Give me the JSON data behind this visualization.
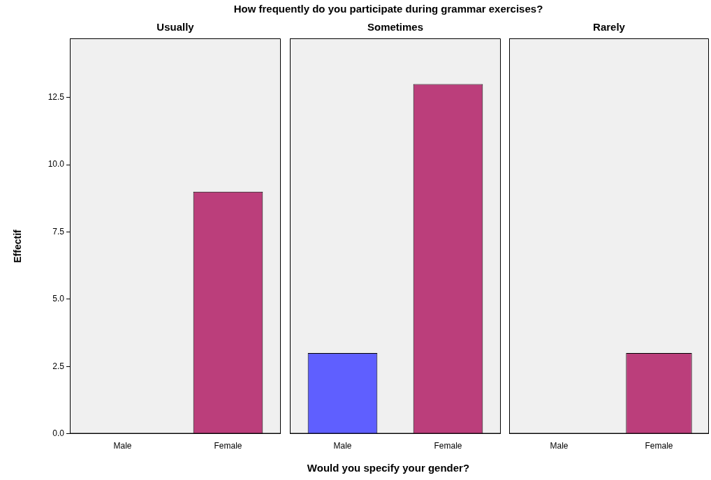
{
  "chart_data": [
    {
      "type": "bar",
      "title": "How frequently do you participate during grammar exercises?",
      "subtitle": "Usually",
      "ylabel": "Effectif",
      "categories": [
        "Male",
        "Female"
      ],
      "values": [
        0,
        9
      ],
      "colors": [
        "#5f5fff",
        "#bb3e7b"
      ],
      "ylim": [
        0,
        14.7
      ],
      "yticks": [
        {
          "value": 0,
          "label": "0.0"
        },
        {
          "value": 2.5,
          "label": "2.5"
        },
        {
          "value": 5,
          "label": "5.0"
        },
        {
          "value": 7.5,
          "label": "7.5"
        },
        {
          "value": 10,
          "label": "10.0"
        },
        {
          "value": 12.5,
          "label": "12.5"
        }
      ]
    },
    {
      "type": "bar",
      "subtitle": "Sometimes",
      "xlabel": "Would you specify your gender?",
      "categories": [
        "Male",
        "Female"
      ],
      "values": [
        3,
        13
      ],
      "colors": [
        "#5f5fff",
        "#bb3e7b"
      ],
      "ylim": [
        0,
        14.7
      ],
      "tick_labels": "x"
    },
    {
      "type": "bar",
      "subtitle": "Rarely",
      "categories": [
        "Male",
        "Female"
      ],
      "values": [
        0,
        3
      ],
      "colors": [
        "#5f5fff",
        "#bb3e7b"
      ],
      "ylim": [
        0,
        14.7
      ],
      "tick_labels": "x"
    }
  ]
}
